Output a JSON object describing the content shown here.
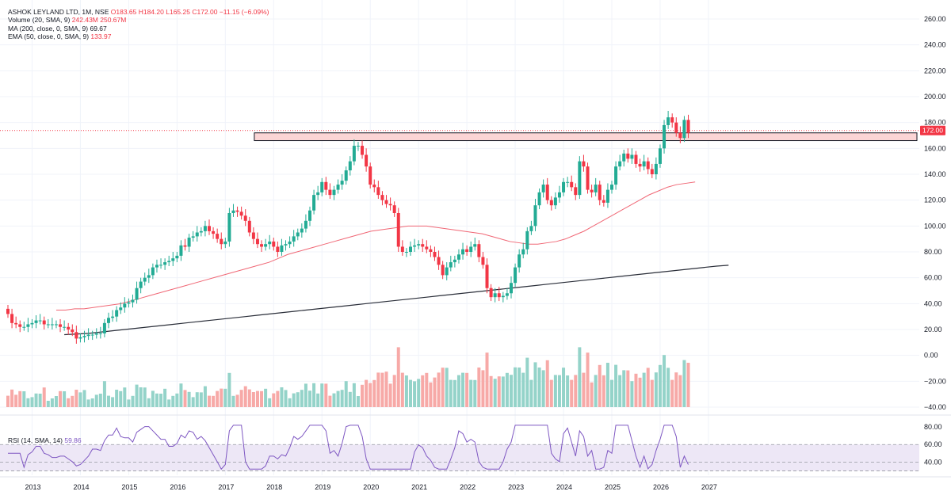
{
  "legend": {
    "symbol_line": "ASHOK LEYLAND LTD, 1M, NSE",
    "ohlc": "O183.65 H184.20 L165.25 C172.00 −11.15 (−6.09%)",
    "volume_label": "Volume (20, SMA, 9)",
    "volume_value": "242.43M",
    "volume_sma_value": "250.67M",
    "ma_label": "MA (200, close, 0, SMA, 9)",
    "ma_value": "69.67",
    "ema_label": "EMA (50, close, 0, SMA, 9)",
    "ema_value": "133.97",
    "rsi_label": "RSI (14, SMA, 14)",
    "rsi_value": "59.86"
  },
  "price_badge": "172.00",
  "colors": {
    "up": "#22ab94",
    "down": "#f23645",
    "volume_up": "#94d3c9",
    "volume_down": "#f7a9a7",
    "ema": "#f06775",
    "ma": "#2a2e39",
    "rsi": "#7e57c2",
    "rsi_band": "#ede7f6",
    "zone_fill": "#fbd5d5"
  },
  "chart_data": {
    "type": "candlestick",
    "interval": "1M",
    "price_axis": {
      "min": -40,
      "max": 260,
      "ticks": [
        "260.00",
        "240.00",
        "220.00",
        "200.00",
        "180.00",
        "160.00",
        "140.00",
        "120.00",
        "100.00",
        "80.00",
        "60.00",
        "40.00",
        "20.00",
        "0.00",
        "−20.00",
        "−40.00"
      ]
    },
    "x_axis": {
      "labels": [
        "2013",
        "2014",
        "2015",
        "2016",
        "2017",
        "2018",
        "2019",
        "2020",
        "2021",
        "2022",
        "2023",
        "2024",
        "2025",
        "2026",
        "2027"
      ],
      "start_year": 2012.5,
      "end_year": 2027.1
    },
    "resistance_zone": {
      "from_year": 2017.6,
      "low": 166,
      "high": 172
    },
    "candles_close": [
      32,
      25,
      24,
      22,
      22,
      24,
      25,
      27,
      27,
      24,
      24,
      24,
      24,
      22,
      22,
      20,
      18,
      13,
      14,
      15,
      16,
      16,
      17,
      17,
      25,
      29,
      30,
      35,
      37,
      40,
      41,
      43,
      52,
      57,
      60,
      62,
      68,
      70,
      70,
      72,
      73,
      75,
      77,
      85,
      84,
      91,
      92,
      95,
      96,
      100,
      96,
      94,
      90,
      86,
      88,
      110,
      112,
      111,
      108,
      104,
      95,
      90,
      86,
      84,
      86,
      88,
      84,
      80,
      85,
      86,
      88,
      92,
      95,
      98,
      104,
      112,
      124,
      126,
      134,
      128,
      124,
      128,
      132,
      135,
      143,
      150,
      162,
      162,
      155,
      146,
      132,
      130,
      124,
      120,
      117,
      116,
      110,
      84,
      80,
      80,
      84,
      85,
      86,
      84,
      82,
      80,
      76,
      70,
      62,
      68,
      72,
      74,
      78,
      82,
      80,
      84,
      86,
      76,
      70,
      52,
      45,
      48,
      45,
      46,
      48,
      56,
      68,
      78,
      82,
      96,
      100,
      116,
      126,
      132,
      120,
      116,
      122,
      126,
      134,
      134,
      130,
      124,
      150,
      146,
      128,
      126,
      132,
      120,
      118,
      128,
      132,
      146,
      150,
      156,
      152,
      155,
      148,
      146,
      150,
      144,
      140,
      148,
      160,
      178,
      184,
      180,
      172,
      168,
      182,
      172
    ],
    "ema_50": {
      "start": 12,
      "values": [
        35,
        35,
        36,
        36,
        37,
        38,
        39,
        40,
        42,
        44,
        46,
        48,
        50,
        52,
        54,
        56,
        58,
        60,
        62,
        64,
        66,
        68,
        70,
        72,
        75,
        78,
        80,
        82,
        84,
        86,
        88,
        90,
        92,
        94,
        96,
        97,
        98,
        99,
        100,
        100,
        100,
        99,
        98,
        97,
        96,
        95,
        94,
        92,
        90,
        88,
        87,
        86,
        86,
        87,
        88,
        90,
        93,
        96,
        100,
        104,
        108,
        112,
        116,
        120,
        124,
        127,
        130,
        132,
        133,
        134
      ]
    },
    "ma_200": {
      "start": 14,
      "values": [
        16,
        16.5,
        17,
        18,
        19,
        20,
        21,
        22,
        23,
        24,
        25,
        26,
        27,
        28,
        29,
        30,
        31,
        32,
        33,
        34,
        35,
        36,
        37,
        38,
        39,
        40,
        41,
        42,
        43,
        44,
        45,
        46,
        47,
        48,
        49,
        50,
        51,
        52,
        53,
        54,
        55,
        56,
        57,
        58,
        59,
        60,
        61,
        62,
        63,
        64,
        65,
        66,
        67,
        68,
        69,
        69.67
      ]
    },
    "volume_axis_note": "volume bars scaled on same pane",
    "rsi": {
      "axis_ticks": [
        "80.00",
        "60.00",
        "40.00"
      ],
      "band": [
        30,
        60
      ],
      "last": 59.86
    }
  }
}
